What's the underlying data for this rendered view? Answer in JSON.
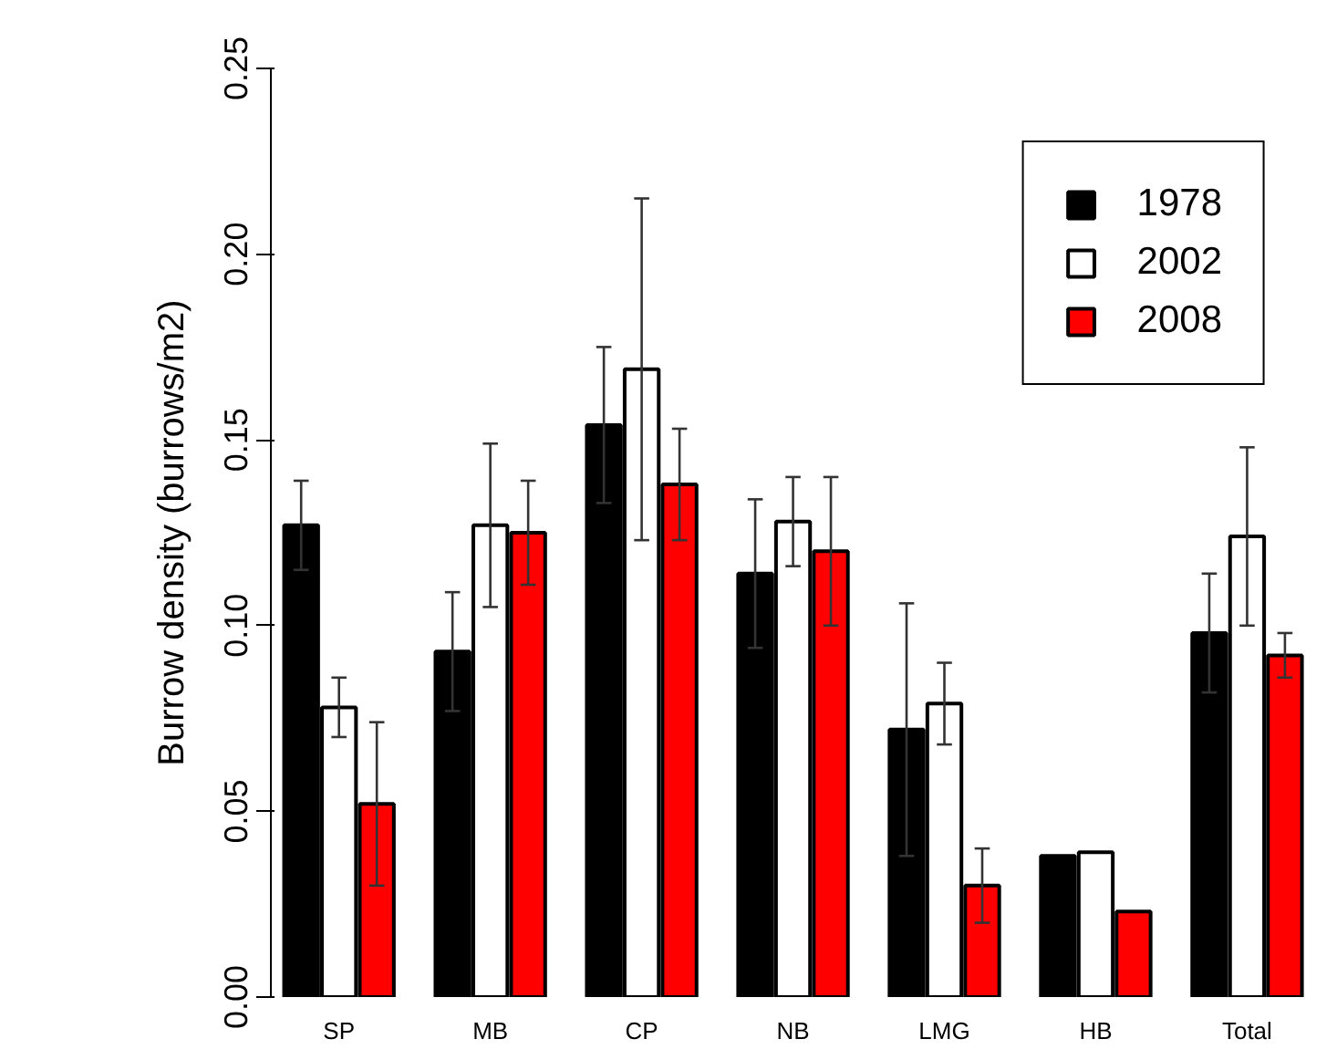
{
  "chart_data": {
    "type": "bar",
    "ylabel": "Burrow density (burrows/m2)",
    "categories": [
      "SP",
      "MB",
      "CP",
      "NB",
      "LMG",
      "HB",
      "Total"
    ],
    "series": [
      {
        "name": "1978",
        "color": "#000000",
        "values": [
          0.127,
          0.093,
          0.154,
          0.114,
          0.072,
          0.038,
          0.098
        ],
        "errors": [
          0.012,
          0.016,
          0.021,
          0.02,
          0.034,
          null,
          0.016
        ]
      },
      {
        "name": "2002",
        "color": "#ffffff",
        "values": [
          0.078,
          0.127,
          0.169,
          0.128,
          0.079,
          0.039,
          0.124
        ],
        "errors": [
          0.008,
          0.022,
          0.046,
          0.012,
          0.011,
          null,
          0.024
        ]
      },
      {
        "name": "2008",
        "color": "#ff0000",
        "values": [
          0.052,
          0.125,
          0.138,
          0.12,
          0.03,
          0.023,
          0.092
        ],
        "errors": [
          0.022,
          0.014,
          0.015,
          0.02,
          0.01,
          null,
          0.006
        ]
      }
    ],
    "ylim": [
      0,
      0.25
    ],
    "yticks": [
      {
        "value": 0,
        "label": "0.00"
      },
      {
        "value": 0.05,
        "label": "0.05"
      },
      {
        "value": 0.1,
        "label": "0.10"
      },
      {
        "value": 0.15,
        "label": "0.15"
      },
      {
        "value": 0.2,
        "label": "0.20"
      },
      {
        "value": 0.25,
        "label": "0.25"
      }
    ],
    "legend": "top right",
    "grid": false
  }
}
